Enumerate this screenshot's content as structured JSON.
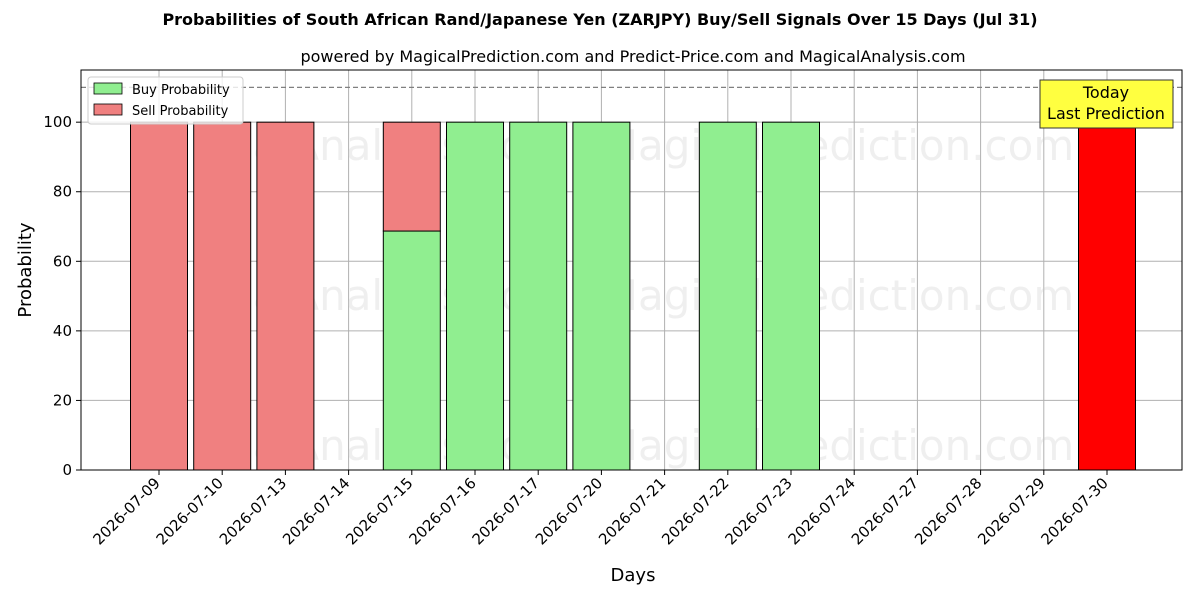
{
  "chart_data": {
    "type": "bar",
    "title": "Probabilities of South African Rand/Japanese Yen (ZARJPY) Buy/Sell Signals Over 15 Days (Jul 31)",
    "subtitle": "powered by MagicalPrediction.com and Predict-Price.com and MagicalAnalysis.com",
    "xlabel": "Days",
    "ylabel": "Probability",
    "ylim": [
      0,
      115
    ],
    "yticks": [
      0,
      20,
      40,
      60,
      80,
      100
    ],
    "grid": true,
    "legend_placement": "top-left",
    "categories": [
      "2026-07-09",
      "2026-07-10",
      "2026-07-13",
      "2026-07-14",
      "2026-07-15",
      "2026-07-16",
      "2026-07-17",
      "2026-07-20",
      "2026-07-21",
      "2026-07-22",
      "2026-07-23",
      "2026-07-24",
      "2026-07-27",
      "2026-07-28",
      "2026-07-29",
      "2026-07-30"
    ],
    "series": [
      {
        "name": "Buy Probability",
        "color": "#90ee90",
        "values": [
          0,
          0,
          0,
          0,
          68.7,
          100,
          100,
          100,
          0,
          100,
          100,
          0,
          0,
          0,
          0,
          0
        ]
      },
      {
        "name": "Sell Probability",
        "color": "#f08080",
        "values": [
          100,
          100,
          100,
          0,
          31.3,
          0,
          0,
          0,
          0,
          0,
          0,
          0,
          0,
          0,
          0,
          0
        ]
      }
    ],
    "today_bar": {
      "category": "2026-07-30",
      "value": 100,
      "color": "#ff0000"
    },
    "reference_line": {
      "y": 110,
      "style": "dashed"
    },
    "annotation": {
      "line1": "Today",
      "line2": "Last Prediction",
      "color": "#ffff40"
    },
    "watermarks": [
      "MagicalAnalysis.com",
      "MagicalPrediction.com"
    ]
  }
}
